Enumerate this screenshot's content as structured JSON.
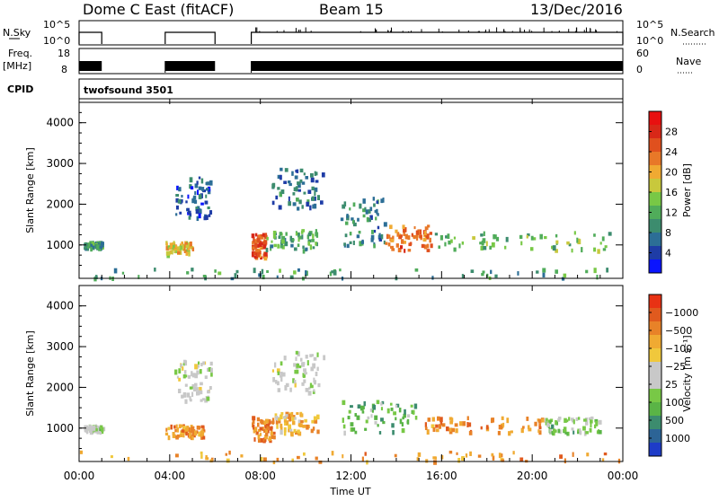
{
  "header": {
    "station": "Dome C East (fitACF)",
    "beam": "Beam 15",
    "date": "13/Dec/2016"
  },
  "strip": {
    "nsky_label": "N.Sky",
    "nsky_ticks": [
      "10^5",
      "10^0"
    ],
    "nsearch_label": "N.Search",
    "nsearch_ticks": [
      "10^5",
      "10^0"
    ],
    "freq_label": "Freq.",
    "freq_unit": "[MHz]",
    "freq_ticks": [
      "18",
      "8"
    ],
    "nave_label": "Nave",
    "nave_ticks": [
      "60",
      "0"
    ],
    "cpid_label": "CPID",
    "cpid_value": "twofsound 3501",
    "on_periods_hours": [
      [
        0.0,
        1.0
      ],
      [
        3.8,
        6.0
      ],
      [
        7.6,
        24.0
      ]
    ]
  },
  "chart_data": [
    {
      "type": "heatmap",
      "title": "",
      "xlabel": "",
      "ylabel": "Slant Range [km]",
      "xlim": [
        0,
        24
      ],
      "ylim": [
        180,
        4500
      ],
      "yticks": [
        "1000",
        "2000",
        "3000",
        "4000"
      ],
      "colorbar": {
        "label": "Power [dB]",
        "ticks": [
          "4",
          "8",
          "12",
          "16",
          "20",
          "24",
          "28"
        ],
        "colors": [
          "#0a14ff",
          "#1e3ca6",
          "#2c6e96",
          "#3c8c6e",
          "#50ac5a",
          "#78c846",
          "#c8c83c",
          "#f0aa32",
          "#e87828",
          "#e0501e",
          "#d82818",
          "#e81010"
        ]
      },
      "scatter_regions_hours_km": [
        {
          "x": [
            0.2,
            1.0
          ],
          "y": [
            950,
            1100
          ],
          "level": 0.3
        },
        {
          "x": [
            3.8,
            5.0
          ],
          "y": [
            800,
            1100
          ],
          "level": 0.6
        },
        {
          "x": [
            4.2,
            5.8
          ],
          "y": [
            1700,
            2700
          ],
          "level": 0.15
        },
        {
          "x": [
            7.6,
            8.2
          ],
          "y": [
            700,
            1300
          ],
          "level": 0.8
        },
        {
          "x": [
            8.2,
            10.5
          ],
          "y": [
            900,
            1400
          ],
          "level": 0.35
        },
        {
          "x": [
            8.5,
            10.8
          ],
          "y": [
            1900,
            2900
          ],
          "level": 0.2
        },
        {
          "x": [
            11.5,
            13.5
          ],
          "y": [
            1000,
            2200
          ],
          "level": 0.25
        },
        {
          "x": [
            13.5,
            15.5
          ],
          "y": [
            900,
            1500
          ],
          "level": 0.75
        },
        {
          "x": [
            15.5,
            23.5
          ],
          "y": [
            900,
            1350
          ],
          "level": 0.4
        },
        {
          "x": [
            0.0,
            24.0
          ],
          "y": [
            200,
            450
          ],
          "level": 0.3
        }
      ]
    },
    {
      "type": "heatmap",
      "title": "",
      "xlabel": "Time UT",
      "ylabel": "Slant Range [km]",
      "xlim": [
        0,
        24
      ],
      "ylim": [
        180,
        4500
      ],
      "yticks": [
        "1000",
        "2000",
        "3000",
        "4000"
      ],
      "xticks": [
        "00:00",
        "04:00",
        "08:00",
        "12:00",
        "16:00",
        "20:00",
        "00:00"
      ],
      "colorbar": {
        "label": "Velocity [m s⁻¹]",
        "ticks": [
          "1000",
          "500",
          "100",
          "25",
          "−25",
          "−100",
          "−500",
          "−1000"
        ],
        "colors": [
          "#1e3cc8",
          "#2c6496",
          "#3c8c6e",
          "#5ab446",
          "#78c846",
          "#c8c8c8",
          "#c8c8c8",
          "#f0c83c",
          "#f0aa32",
          "#e88228",
          "#e05a1e",
          "#e83214"
        ]
      },
      "scatter_regions_hours_km": [
        {
          "x": [
            0.2,
            1.0
          ],
          "y": [
            950,
            1100
          ],
          "level": 0.45
        },
        {
          "x": [
            3.8,
            5.5
          ],
          "y": [
            800,
            1100
          ],
          "level": 0.8
        },
        {
          "x": [
            4.2,
            5.8
          ],
          "y": [
            1700,
            2700
          ],
          "level": 0.5
        },
        {
          "x": [
            7.6,
            8.6
          ],
          "y": [
            700,
            1300
          ],
          "level": 0.82
        },
        {
          "x": [
            8.6,
            10.5
          ],
          "y": [
            900,
            1400
          ],
          "level": 0.7
        },
        {
          "x": [
            8.5,
            10.8
          ],
          "y": [
            1900,
            2900
          ],
          "level": 0.48
        },
        {
          "x": [
            11.5,
            15.0
          ],
          "y": [
            900,
            1700
          ],
          "level": 0.3
        },
        {
          "x": [
            15.0,
            20.5
          ],
          "y": [
            900,
            1300
          ],
          "level": 0.8
        },
        {
          "x": [
            20.5,
            23.0
          ],
          "y": [
            900,
            1300
          ],
          "level": 0.35
        },
        {
          "x": [
            0.0,
            24.0
          ],
          "y": [
            200,
            450
          ],
          "level": 0.75
        }
      ]
    }
  ]
}
